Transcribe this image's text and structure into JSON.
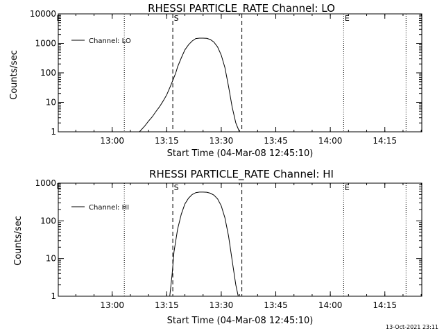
{
  "colors": {
    "background": "#ffffff",
    "foreground": "#000000"
  },
  "timestamp": "13-Oct-2021 23:11",
  "chart_data": [
    {
      "type": "line",
      "title": "RHESSI PARTICLE_RATE Channel: LO",
      "xlabel": "Start Time (04-Mar-08 12:45:10)",
      "ylabel": "Counts/sec",
      "yscale": "log",
      "xlim": [
        "12:45:10",
        "14:25:10"
      ],
      "ylim": [
        1,
        10000
      ],
      "xticks": [
        "13:00",
        "13:15",
        "13:30",
        "13:45",
        "14:00",
        "14:15"
      ],
      "yticks": [
        "1",
        "10",
        "100",
        "1000",
        "10000"
      ],
      "legend": {
        "position": "top-left",
        "entries": [
          "Channel: LO"
        ]
      },
      "series": [
        {
          "name": "Channel: LO",
          "x": [
            "13:07:30",
            "13:09:00",
            "13:10:00",
            "13:11:00",
            "13:12:00",
            "13:13:00",
            "13:14:00",
            "13:15:00",
            "13:16:00",
            "13:17:00",
            "13:17:30",
            "13:18:00",
            "13:19:00",
            "13:20:00",
            "13:21:00",
            "13:22:00",
            "13:23:00",
            "13:24:00",
            "13:25:00",
            "13:26:00",
            "13:27:00",
            "13:28:00",
            "13:29:00",
            "13:30:00",
            "13:31:00",
            "13:32:00",
            "13:33:00",
            "13:34:00",
            "13:35:00"
          ],
          "values": [
            1,
            1.6,
            2.3,
            3.2,
            4.8,
            7,
            11,
            18,
            35,
            70,
            100,
            160,
            320,
            600,
            900,
            1200,
            1450,
            1500,
            1500,
            1480,
            1350,
            1100,
            750,
            400,
            150,
            35,
            7,
            2,
            1
          ]
        }
      ],
      "vertical_markers": [
        {
          "time": "13:03:20",
          "style": "dotted",
          "label": ""
        },
        {
          "time": "13:16:40",
          "style": "dashed",
          "label": "S"
        },
        {
          "time": "13:35:40",
          "style": "dashed",
          "label": ""
        },
        {
          "time": "14:03:40",
          "style": "dotted",
          "label": "E"
        },
        {
          "time": "14:20:50",
          "style": "dotted",
          "label": ""
        }
      ],
      "corner_label": "E"
    },
    {
      "type": "line",
      "title": "RHESSI PARTICLE_RATE Channel: HI",
      "xlabel": "Start Time (04-Mar-08 12:45:10)",
      "ylabel": "Counts/sec",
      "yscale": "log",
      "xlim": [
        "12:45:10",
        "14:25:10"
      ],
      "ylim": [
        1,
        1000
      ],
      "xticks": [
        "13:00",
        "13:15",
        "13:30",
        "13:45",
        "14:00",
        "14:15"
      ],
      "yticks": [
        "1",
        "10",
        "100",
        "1000"
      ],
      "legend": {
        "position": "top-left",
        "entries": [
          "Channel: HI"
        ]
      },
      "series": [
        {
          "name": "Channel: HI",
          "x": [
            "13:15:50",
            "13:16:30",
            "13:17:00",
            "13:18:00",
            "13:19:00",
            "13:20:00",
            "13:21:00",
            "13:22:00",
            "13:23:00",
            "13:24:00",
            "13:25:00",
            "13:26:00",
            "13:27:00",
            "13:28:00",
            "13:29:00",
            "13:30:00",
            "13:31:00",
            "13:32:00",
            "13:33:00",
            "13:34:00",
            "13:34:40"
          ],
          "values": [
            1,
            4,
            15,
            60,
            150,
            280,
            400,
            500,
            560,
            580,
            580,
            575,
            540,
            480,
            380,
            250,
            120,
            40,
            9,
            2,
            1
          ]
        }
      ],
      "vertical_markers": [
        {
          "time": "13:03:20",
          "style": "dotted",
          "label": ""
        },
        {
          "time": "13:16:40",
          "style": "dashed",
          "label": "S"
        },
        {
          "time": "13:35:40",
          "style": "dashed",
          "label": ""
        },
        {
          "time": "14:03:40",
          "style": "dotted",
          "label": "E"
        },
        {
          "time": "14:20:50",
          "style": "dotted",
          "label": ""
        }
      ],
      "corner_label": "E"
    }
  ]
}
